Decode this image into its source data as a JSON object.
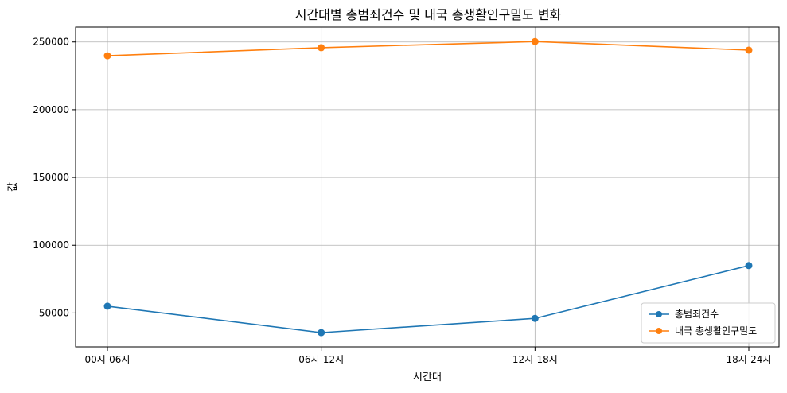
{
  "chart_data": {
    "type": "line",
    "title": "시간대별 총범죄건수 및 내국 총생활인구밀도 변화",
    "xlabel": "시간대",
    "ylabel": "값",
    "categories": [
      "00시-06시",
      "06시-12시",
      "12시-18시",
      "18시-24시"
    ],
    "series": [
      {
        "name": "총범죄건수",
        "color": "#1f77b4",
        "values": [
          55000,
          35500,
          46000,
          85000
        ]
      },
      {
        "name": "내국 총생활인구밀도",
        "color": "#ff7f0e",
        "values": [
          239800,
          245800,
          250300,
          244000
        ]
      }
    ],
    "ylim": [
      25000,
      261000
    ],
    "yticks": [
      50000,
      100000,
      150000,
      200000,
      250000
    ],
    "grid": true,
    "legend_position": "lower-right"
  }
}
